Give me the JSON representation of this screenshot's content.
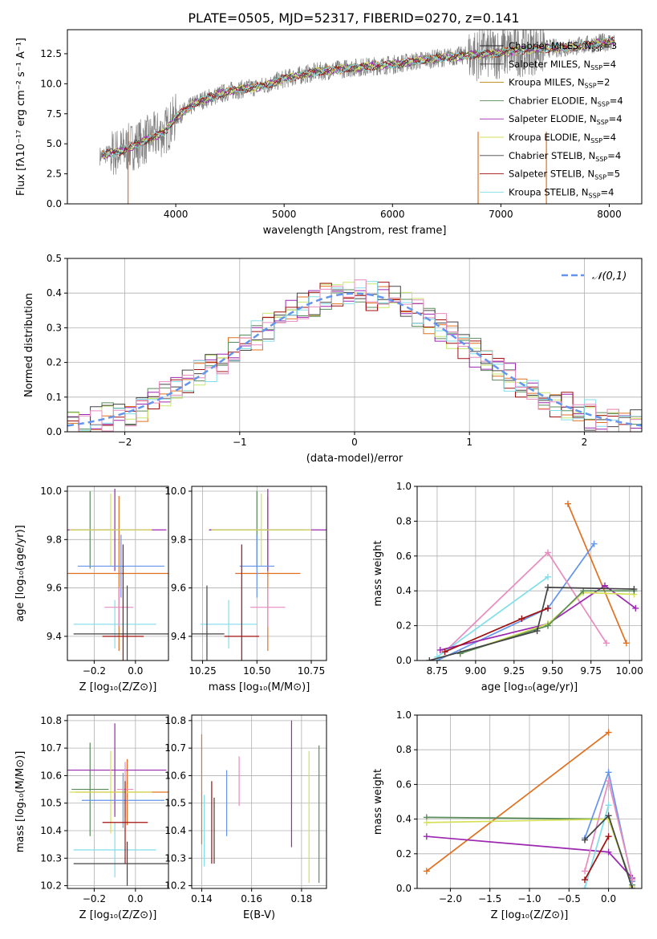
{
  "figure_title": "PLATE=0505, MJD=52317, FIBERID=0270, z=0.141",
  "model_colors": [
    "#888888",
    "#e07020",
    "#b8860b",
    "#5a8c5a",
    "#9c27b0",
    "#d4e157",
    "#444444",
    "#a01010",
    "#80deea",
    "#6495ed",
    "#e88cc0",
    "#c6e86a",
    "#cc44cc"
  ],
  "chart_data": [
    {
      "id": "spectrum",
      "type": "line",
      "title": "PLATE=0505, MJD=52317, FIBERID=0270, z=0.141",
      "xlabel": "wavelength [Angstrom, rest frame]",
      "ylabel": "Flux [fλ10⁻¹⁷ erg cm⁻² s⁻¹ A⁻¹]",
      "xlim": [
        3000,
        8300
      ],
      "ylim": [
        0,
        14.5
      ],
      "xticks": [
        4000,
        5000,
        6000,
        7000,
        8000
      ],
      "yticks": [
        0.0,
        2.5,
        5.0,
        7.5,
        10.0,
        12.5
      ],
      "legend_position": "top-right",
      "series": [
        {
          "name": "Chabrier MILES, N_SSP=3",
          "color": "#1f1f1f"
        },
        {
          "name": "Salpeter MILES, N_SSP=4",
          "color": "#3a3a3a"
        },
        {
          "name": "Kroupa MILES, N_SSP=2",
          "color": "#b8860b"
        },
        {
          "name": "Chabrier ELODIE, N_SSP=4",
          "color": "#5a8c5a"
        },
        {
          "name": "Salpeter ELODIE, N_SSP=4",
          "color": "#9c27b0"
        },
        {
          "name": "Kroupa ELODIE, N_SSP=4",
          "color": "#d4e157"
        },
        {
          "name": "Chabrier STELIB, N_SSP=4",
          "color": "#444444"
        },
        {
          "name": "Salpeter STELIB, N_SSP=5",
          "color": "#a01010"
        },
        {
          "name": "Kroupa STELIB, N_SSP=4",
          "color": "#80deea"
        }
      ],
      "continuum_x": [
        3300,
        3500,
        3700,
        3900,
        4000,
        4200,
        4500,
        4800,
        5000,
        5300,
        5600,
        6000,
        6300,
        6600,
        7000,
        7300,
        7600,
        8000
      ],
      "continuum_y": [
        4.0,
        4.4,
        5.2,
        6.0,
        7.2,
        8.5,
        9.4,
        9.8,
        10.4,
        11.0,
        11.3,
        11.6,
        12.0,
        12.3,
        12.6,
        12.9,
        13.0,
        13.5
      ]
    },
    {
      "id": "residuals",
      "type": "line",
      "xlabel": "(data-model)/error",
      "ylabel": "Normed distribution",
      "xlim": [
        -2.5,
        2.5
      ],
      "ylim": [
        0,
        0.5
      ],
      "xticks": [
        -2,
        -1,
        0,
        1,
        2
      ],
      "yticks": [
        0.0,
        0.1,
        0.2,
        0.3,
        0.4,
        0.5
      ],
      "legend_position": "top-right",
      "gauss_label": "𝒩(0,1)",
      "gauss_color": "#6495ed"
    },
    {
      "id": "age-vs-Z",
      "type": "scatter",
      "xlabel": "Z [log₁₀(Z/Z⊙)]",
      "ylabel": "age  [log₁₀(age/yr)]",
      "xlim": [
        -0.33,
        0.16
      ],
      "ylim": [
        9.3,
        10.02
      ],
      "xticks": [
        -0.2,
        0.0
      ],
      "xtick_labels": [
        "−0.2",
        "0.0"
      ],
      "yticks": [
        9.4,
        9.6,
        9.8,
        10.0
      ],
      "points": [
        {
          "x": -0.22,
          "y": 9.84,
          "xerr": 0.1,
          "yerr": 0.16,
          "color": "#5a8c5a"
        },
        {
          "x": -0.08,
          "y": 9.66,
          "xerr": 0.25,
          "yerr": 0.32,
          "color": "#e07020"
        },
        {
          "x": -0.1,
          "y": 9.84,
          "xerr": 0.25,
          "yerr": 0.17,
          "color": "#9c27b0"
        },
        {
          "x": -0.12,
          "y": 9.84,
          "xerr": 0.2,
          "yerr": 0.15,
          "color": "#d4e157"
        },
        {
          "x": -0.07,
          "y": 9.69,
          "xerr": 0.21,
          "yerr": 0.13,
          "color": "#6495ed"
        },
        {
          "x": -0.1,
          "y": 9.45,
          "xerr": 0.2,
          "yerr": 0.1,
          "color": "#80deea"
        },
        {
          "x": -0.08,
          "y": 9.52,
          "xerr": 0.07,
          "yerr": 0.08,
          "color": "#e88cc0"
        },
        {
          "x": -0.04,
          "y": 9.41,
          "xerr": 0.26,
          "yerr": 0.2,
          "color": "#444444"
        },
        {
          "x": -0.06,
          "y": 9.4,
          "xerr": 0.1,
          "yerr": 0.38,
          "color": "#a01010"
        }
      ]
    },
    {
      "id": "age-vs-mass",
      "type": "scatter",
      "xlabel": "mass [log₁₀(M/M⊙)]",
      "xlim": [
        10.2,
        10.82
      ],
      "ylim": [
        9.3,
        10.02
      ],
      "xticks": [
        10.25,
        10.5,
        10.75
      ],
      "yticks": [
        9.4,
        9.6,
        9.8,
        10.0
      ],
      "points": [
        {
          "x": 10.5,
          "y": 9.84,
          "xerr": 0.22,
          "yerr": 0.16,
          "color": "#5a8c5a"
        },
        {
          "x": 10.55,
          "y": 9.66,
          "xerr": 0.15,
          "yerr": 0.32,
          "color": "#e07020"
        },
        {
          "x": 10.55,
          "y": 9.84,
          "xerr": 0.27,
          "yerr": 0.17,
          "color": "#9c27b0"
        },
        {
          "x": 10.52,
          "y": 9.84,
          "xerr": 0.23,
          "yerr": 0.15,
          "color": "#d4e157"
        },
        {
          "x": 10.5,
          "y": 9.69,
          "xerr": 0.08,
          "yerr": 0.13,
          "color": "#6495ed"
        },
        {
          "x": 10.37,
          "y": 9.45,
          "xerr": 0.13,
          "yerr": 0.1,
          "color": "#80deea"
        },
        {
          "x": 10.55,
          "y": 9.52,
          "xerr": 0.08,
          "yerr": 0.08,
          "color": "#e88cc0"
        },
        {
          "x": 10.27,
          "y": 9.41,
          "xerr": 0.08,
          "yerr": 0.2,
          "color": "#444444"
        },
        {
          "x": 10.43,
          "y": 9.4,
          "xerr": 0.08,
          "yerr": 0.38,
          "color": "#a01010"
        }
      ]
    },
    {
      "id": "massweight-vs-age",
      "type": "line",
      "xlabel": "age  [log₁₀(age/yr)]",
      "ylabel": "mass weight",
      "xlim": [
        8.62,
        10.08
      ],
      "ylim": [
        0,
        1.0
      ],
      "xticks": [
        8.75,
        9.0,
        9.25,
        9.5,
        9.75,
        10.0
      ],
      "yticks": [
        0.0,
        0.2,
        0.4,
        0.6,
        0.8,
        1.0
      ],
      "series": [
        {
          "color": "#e07020",
          "x": [
            9.6,
            9.98
          ],
          "y": [
            0.9,
            0.1
          ]
        },
        {
          "color": "#6495ed",
          "x": [
            8.75,
            9.47,
            9.77
          ],
          "y": [
            0.0,
            0.3,
            0.67
          ]
        },
        {
          "color": "#e88cc0",
          "x": [
            8.8,
            9.47,
            9.85
          ],
          "y": [
            0.05,
            0.62,
            0.1
          ]
        },
        {
          "color": "#80deea",
          "x": [
            8.75,
            9.47
          ],
          "y": [
            0.02,
            0.48
          ]
        },
        {
          "color": "#9c27b0",
          "x": [
            8.77,
            9.47,
            9.84,
            10.04
          ],
          "y": [
            0.06,
            0.21,
            0.43,
            0.3
          ]
        },
        {
          "color": "#d4e157",
          "x": [
            8.9,
            9.47,
            9.7,
            10.03
          ],
          "y": [
            0.04,
            0.21,
            0.39,
            0.38
          ]
        },
        {
          "color": "#5a8c5a",
          "x": [
            8.9,
            9.47,
            9.7,
            10.03
          ],
          "y": [
            0.04,
            0.2,
            0.4,
            0.4
          ]
        },
        {
          "color": "#444444",
          "x": [
            8.7,
            9.4,
            9.47,
            10.03
          ],
          "y": [
            0.0,
            0.17,
            0.42,
            0.41
          ]
        },
        {
          "color": "#a01010",
          "x": [
            8.8,
            9.3,
            9.47
          ],
          "y": [
            0.05,
            0.24,
            0.3
          ]
        }
      ]
    },
    {
      "id": "mass-vs-Z",
      "type": "scatter",
      "xlabel": "Z [log₁₀(Z/Z⊙)]",
      "ylabel": "mass [log₁₀(M/M⊙)]",
      "xlim": [
        -0.33,
        0.16
      ],
      "ylim": [
        10.19,
        10.82
      ],
      "xticks": [
        -0.2,
        0.0
      ],
      "xtick_labels": [
        "−0.2",
        "0.0"
      ],
      "yticks": [
        10.2,
        10.3,
        10.4,
        10.5,
        10.6,
        10.7,
        10.8
      ],
      "points": [
        {
          "x": -0.22,
          "y": 10.55,
          "xerr": 0.09,
          "yerr": 0.17,
          "color": "#5a8c5a"
        },
        {
          "x": -0.04,
          "y": 10.54,
          "xerr": 0.25,
          "yerr": 0.12,
          "color": "#e07020"
        },
        {
          "x": -0.1,
          "y": 10.62,
          "xerr": 0.25,
          "yerr": 0.17,
          "color": "#9c27b0"
        },
        {
          "x": -0.12,
          "y": 10.54,
          "xerr": 0.2,
          "yerr": 0.15,
          "color": "#d4e157"
        },
        {
          "x": -0.06,
          "y": 10.51,
          "xerr": 0.2,
          "yerr": 0.1,
          "color": "#6495ed"
        },
        {
          "x": -0.1,
          "y": 10.33,
          "xerr": 0.2,
          "yerr": 0.1,
          "color": "#80deea"
        },
        {
          "x": -0.05,
          "y": 10.55,
          "xerr": 0.04,
          "yerr": 0.1,
          "color": "#e88cc0"
        },
        {
          "x": -0.04,
          "y": 10.28,
          "xerr": 0.26,
          "yerr": 0.08,
          "color": "#444444"
        },
        {
          "x": -0.05,
          "y": 10.43,
          "xerr": 0.11,
          "yerr": 0.15,
          "color": "#a01010"
        }
      ]
    },
    {
      "id": "mass-vs-EBV",
      "type": "scatter",
      "xlabel": "E(B-V)",
      "xlim": [
        0.136,
        0.19
      ],
      "ylim": [
        10.19,
        10.82
      ],
      "xticks": [
        0.14,
        0.16,
        0.18
      ],
      "yticks": [
        10.2,
        10.3,
        10.4,
        10.5,
        10.6,
        10.7,
        10.8
      ],
      "points": [
        {
          "x": 0.14,
          "y": 10.55,
          "yerr": 0.2,
          "color": "#e07020"
        },
        {
          "x": 0.141,
          "y": 10.4,
          "yerr": 0.13,
          "color": "#80deea"
        },
        {
          "x": 0.144,
          "y": 10.43,
          "yerr": 0.15,
          "color": "#a01010"
        },
        {
          "x": 0.145,
          "y": 10.4,
          "yerr": 0.12,
          "color": "#444444"
        },
        {
          "x": 0.15,
          "y": 10.5,
          "yerr": 0.12,
          "color": "#6495ed"
        },
        {
          "x": 0.155,
          "y": 10.58,
          "yerr": 0.09,
          "color": "#e88cc0"
        },
        {
          "x": 0.176,
          "y": 10.57,
          "yerr": 0.23,
          "color": "#9c27b0"
        },
        {
          "x": 0.183,
          "y": 10.45,
          "yerr": 0.24,
          "color": "#d4e157"
        },
        {
          "x": 0.187,
          "y": 10.46,
          "yerr": 0.25,
          "color": "#5a8c5a"
        }
      ]
    },
    {
      "id": "massweight-vs-Z",
      "type": "line",
      "xlabel": "Z [log₁₀(Z/Z⊙)]",
      "ylabel": "mass weight",
      "xlim": [
        -2.42,
        0.42
      ],
      "ylim": [
        0,
        1.0
      ],
      "xticks": [
        -2.0,
        -1.5,
        -1.0,
        -0.5,
        0.0
      ],
      "xtick_labels": [
        "−2.0",
        "−1.5",
        "−1.0",
        "−0.5",
        "0.0"
      ],
      "yticks": [
        0.0,
        0.2,
        0.4,
        0.6,
        0.8,
        1.0
      ],
      "series": [
        {
          "color": "#e07020",
          "x": [
            -2.3,
            0.0
          ],
          "y": [
            0.1,
            0.9
          ]
        },
        {
          "color": "#5a8c5a",
          "x": [
            -2.3,
            0.0,
            0.3
          ],
          "y": [
            0.41,
            0.4,
            0.02
          ]
        },
        {
          "color": "#d4e157",
          "x": [
            -2.3,
            0.0,
            0.3
          ],
          "y": [
            0.38,
            0.4,
            0.01
          ]
        },
        {
          "color": "#9c27b0",
          "x": [
            -2.3,
            0.0,
            0.3
          ],
          "y": [
            0.3,
            0.21,
            0.06
          ]
        },
        {
          "color": "#6495ed",
          "x": [
            -0.3,
            0.0,
            0.3
          ],
          "y": [
            0.29,
            0.67,
            0.04
          ]
        },
        {
          "color": "#e88cc0",
          "x": [
            -0.3,
            0.0,
            0.3
          ],
          "y": [
            0.1,
            0.62,
            0.05
          ]
        },
        {
          "color": "#80deea",
          "x": [
            -0.3,
            0.0
          ],
          "y": [
            0.0,
            0.48
          ]
        },
        {
          "color": "#444444",
          "x": [
            -0.3,
            0.0,
            0.3
          ],
          "y": [
            0.28,
            0.42,
            0.0
          ]
        },
        {
          "color": "#a01010",
          "x": [
            -0.3,
            0.0
          ],
          "y": [
            0.05,
            0.3
          ]
        }
      ]
    }
  ]
}
